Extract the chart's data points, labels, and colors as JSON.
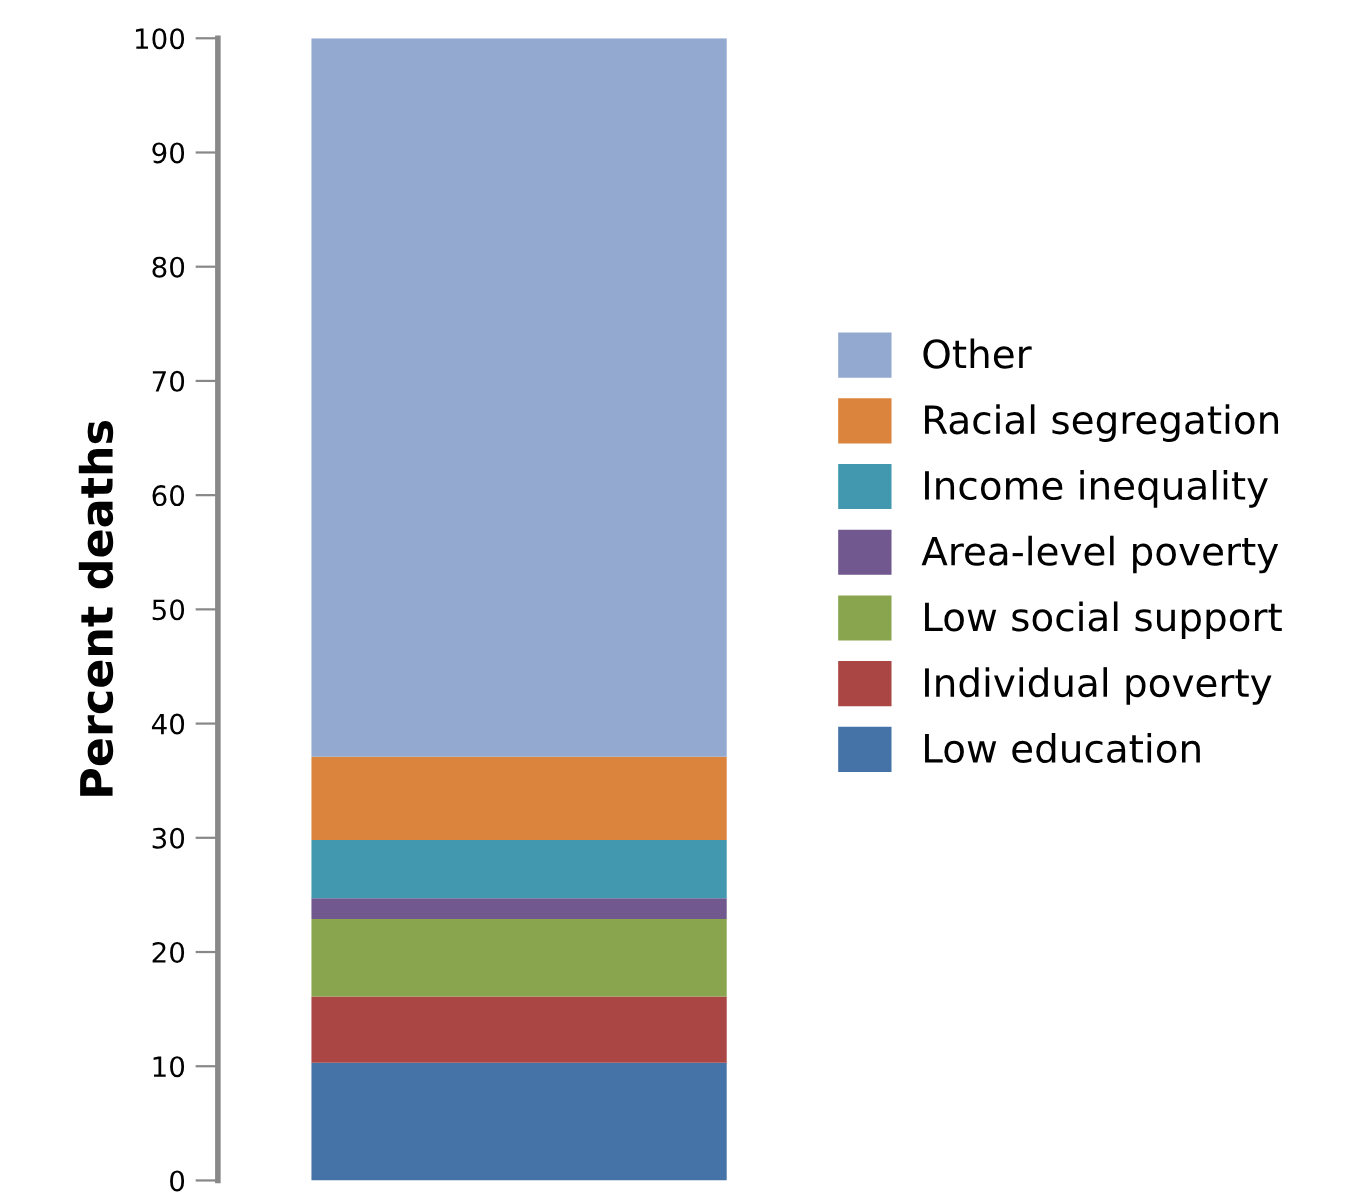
{
  "chart_data": {
    "type": "bar",
    "stacked": true,
    "ylabel": "Percent deaths",
    "categories": [
      null
    ],
    "series": [
      {
        "name": "Low education",
        "color": "#4573a7",
        "values": [
          10.3
        ]
      },
      {
        "name": "Individual poverty",
        "color": "#aa4644",
        "values": [
          5.8
        ]
      },
      {
        "name": "Low social support",
        "color": "#89a54e",
        "values": [
          6.8
        ]
      },
      {
        "name": "Area-level poverty",
        "color": "#71588f",
        "values": [
          1.8
        ]
      },
      {
        "name": "Income inequality",
        "color": "#4198af",
        "values": [
          5.1
        ]
      },
      {
        "name": "Racial segregation",
        "color": "#db843d",
        "values": [
          7.3
        ]
      },
      {
        "name": "Other",
        "color": "#93a9cf",
        "values": [
          62.9
        ]
      }
    ],
    "ylim": [
      0,
      100
    ],
    "yticks": [
      0,
      10,
      20,
      30,
      40,
      50,
      60,
      70,
      80,
      90,
      100
    ],
    "legend": "right",
    "tick_labels": "y",
    "grid": false
  }
}
